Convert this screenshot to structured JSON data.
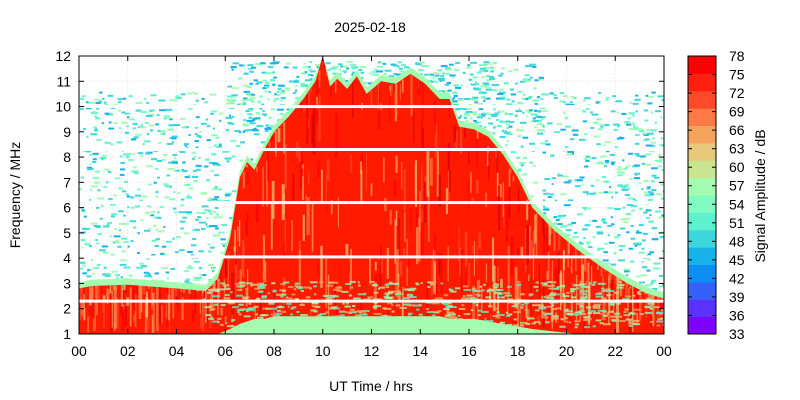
{
  "chart_data": {
    "type": "heatmap",
    "title": "2025-02-18",
    "xlabel": "UT Time / hrs",
    "ylabel": "Frequency / MHz",
    "colorbar_label": "Signal Amplitude / dB",
    "xlim": [
      0,
      24
    ],
    "ylim": [
      1,
      12
    ],
    "x_ticks": [
      "00",
      "02",
      "04",
      "06",
      "08",
      "10",
      "12",
      "14",
      "16",
      "18",
      "20",
      "22",
      "00"
    ],
    "y_ticks": [
      "1",
      "2",
      "3",
      "4",
      "5",
      "6",
      "7",
      "8",
      "9",
      "10",
      "11",
      "12"
    ],
    "clim": [
      33,
      78
    ],
    "colorbar_ticks": [
      "33",
      "36",
      "39",
      "42",
      "45",
      "48",
      "51",
      "54",
      "57",
      "60",
      "63",
      "66",
      "69",
      "72",
      "75",
      "78"
    ],
    "colorbar_colors": [
      "#8000ff",
      "#5a32fe",
      "#3462f9",
      "#0e8ef2",
      "#18b2e8",
      "#3cd6dc",
      "#5ef0cf",
      "#80fcc2",
      "#a4fcb0",
      "#c8e58f",
      "#e8c87a",
      "#f5a45e",
      "#ff7a45",
      "#ff4a2a",
      "#ff2010",
      "#ff0000"
    ],
    "grid": true,
    "intense_region_outline": {
      "time_hrs": [
        0,
        0.5,
        2,
        4,
        5.2,
        5.7,
        6.2,
        6.6,
        6.9,
        7.2,
        7.6,
        8.0,
        8.6,
        9.2,
        9.7,
        10.0,
        10.3,
        10.6,
        11.0,
        11.4,
        11.8,
        12.4,
        13.0,
        13.6,
        14.2,
        14.8,
        15.2,
        15.6,
        16.2,
        16.8,
        17.4,
        18.0,
        18.6,
        19.5,
        20.5,
        21.5,
        22.5,
        23.3,
        24
      ],
      "top_freq_mhz": [
        2.8,
        2.9,
        2.95,
        2.8,
        2.7,
        3.2,
        4.8,
        7.2,
        7.8,
        7.5,
        8.3,
        9.0,
        9.6,
        10.3,
        11.0,
        12.0,
        10.8,
        11.1,
        10.7,
        11.2,
        10.5,
        11.0,
        10.9,
        11.3,
        10.9,
        10.3,
        10.3,
        9.2,
        9.1,
        8.8,
        8.1,
        7.2,
        6.0,
        5.1,
        4.3,
        3.6,
        3.0,
        2.6,
        2.4
      ],
      "bottom_freq_mhz": [
        1.0,
        1.0,
        1.0,
        1.0,
        1.0,
        1.0,
        1.2,
        1.4,
        1.5,
        1.6,
        1.6,
        1.7,
        1.7,
        1.7,
        1.7,
        1.7,
        1.7,
        1.7,
        1.7,
        1.7,
        1.7,
        1.7,
        1.7,
        1.7,
        1.7,
        1.7,
        1.6,
        1.6,
        1.6,
        1.5,
        1.4,
        1.3,
        1.2,
        1.1,
        1.0,
        1.0,
        1.0,
        1.0,
        1.0
      ]
    },
    "missing_frequency_lines_mhz": [
      2.3,
      4.05,
      6.2,
      8.3,
      10.0
    ]
  }
}
